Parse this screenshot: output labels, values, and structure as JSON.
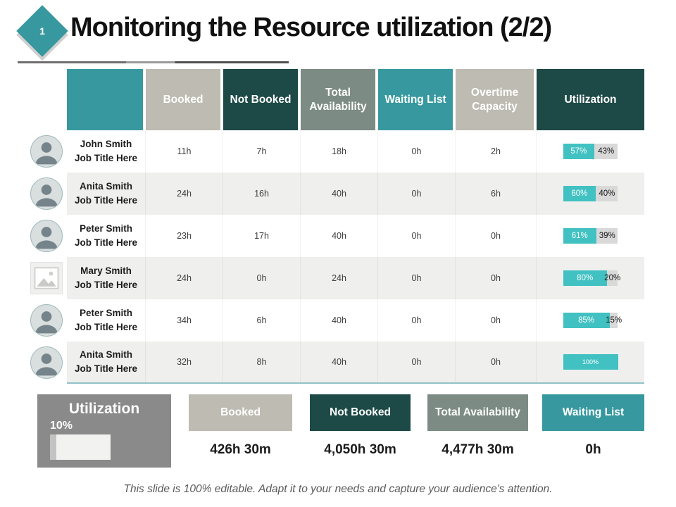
{
  "slide": {
    "page_number": "1",
    "title": "Monitoring the Resource utilization (2/2)",
    "footer": "This slide is 100% editable. Adapt it to your needs and capture your audience's attention."
  },
  "colors": {
    "teal": "#37999F",
    "dark_teal": "#1D4A46",
    "sage": "#7C8C85",
    "light_gray": "#BDBBB2",
    "bar_teal": "#41C1C1",
    "bar_gray": "#D9D9D9",
    "summary_gray": "#8A8A8A"
  },
  "table": {
    "columns": [
      "",
      "Booked",
      "Not Booked",
      "Total Availability",
      "Waiting List",
      "Overtime Capacity",
      "Utilization"
    ],
    "column_colors": [
      "#37999F",
      "#BDBBB2",
      "#1D4A46",
      "#7C8C85",
      "#37999F",
      "#BDBBB2",
      "#1D4A46"
    ],
    "rows": [
      {
        "name": "John Smith",
        "title": "Job Title Here",
        "booked": "11h",
        "not_booked": "7h",
        "total_availability": "18h",
        "waiting_list": "0h",
        "overtime": "2h",
        "used_pct": 57,
        "used_label": "57%",
        "free_pct": 43,
        "free_label": "43%"
      },
      {
        "name": "Anita Smith",
        "title": "Job Title Here",
        "booked": "24h",
        "not_booked": "16h",
        "total_availability": "40h",
        "waiting_list": "0h",
        "overtime": "6h",
        "used_pct": 60,
        "used_label": "60%",
        "free_pct": 40,
        "free_label": "40%"
      },
      {
        "name": "Peter Smith",
        "title": "Job Title Here",
        "booked": "23h",
        "not_booked": "17h",
        "total_availability": "40h",
        "waiting_list": "0h",
        "overtime": "0h",
        "used_pct": 61,
        "used_label": "61%",
        "free_pct": 39,
        "free_label": "39%"
      },
      {
        "name": "Mary Smith",
        "title": "Job Title Here",
        "booked": "24h",
        "not_booked": "0h",
        "total_availability": "24h",
        "waiting_list": "0h",
        "overtime": "0h",
        "used_pct": 80,
        "used_label": "80%",
        "free_pct": 20,
        "free_label": "20%"
      },
      {
        "name": "Peter Smith",
        "title": "Job Title Here",
        "booked": "34h",
        "not_booked": "6h",
        "total_availability": "40h",
        "waiting_list": "0h",
        "overtime": "0h",
        "used_pct": 85,
        "used_label": "85%",
        "free_pct": 15,
        "free_label": "15%"
      },
      {
        "name": "Anita Smith",
        "title": "Job Title Here",
        "booked": "32h",
        "not_booked": "8h",
        "total_availability": "40h",
        "waiting_list": "0h",
        "overtime": "0h",
        "used_pct": 100,
        "used_label": "100%",
        "free_pct": 0,
        "free_label": ""
      }
    ]
  },
  "summary": {
    "utilization": {
      "label": "Utilization",
      "value_label": "10%",
      "pct": 10
    },
    "cards": [
      {
        "label": "Booked",
        "value": "426h 30m",
        "color": "#BDBBB2"
      },
      {
        "label": "Not Booked",
        "value": "4,050h 30m",
        "color": "#1D4A46"
      },
      {
        "label": "Total Availability",
        "value": "4,477h 30m",
        "color": "#7C8C85"
      },
      {
        "label": "Waiting List",
        "value": "0h",
        "color": "#37999F"
      }
    ]
  }
}
